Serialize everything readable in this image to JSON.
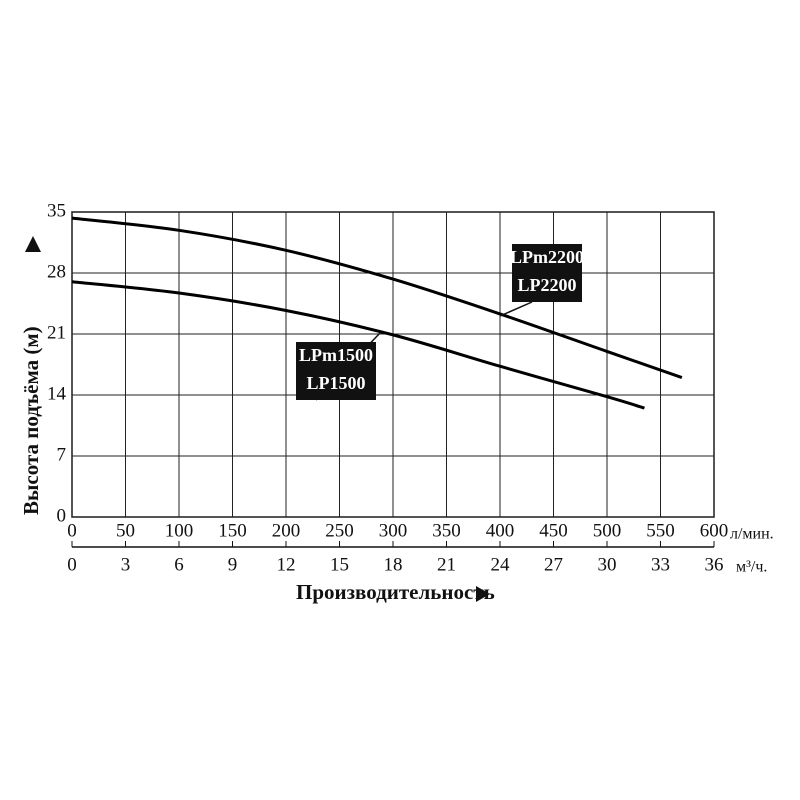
{
  "chart_data": {
    "type": "line",
    "xlabel": "Производительность",
    "ylabel": "Высота подъёма (м)",
    "xunit": "л/мин.",
    "x2unit": "м³/ч.",
    "xlim": [
      0,
      600
    ],
    "xticks": [
      0,
      50,
      100,
      150,
      200,
      250,
      300,
      350,
      400,
      450,
      500,
      550,
      600
    ],
    "x2lim": [
      0,
      36
    ],
    "x2ticks": [
      0,
      3,
      6,
      9,
      12,
      15,
      18,
      21,
      24,
      27,
      30,
      33,
      36
    ],
    "ylim": [
      0,
      35
    ],
    "yticks": [
      0,
      7,
      14,
      21,
      28,
      35
    ],
    "grid": true,
    "series": [
      {
        "name": "LPm2200",
        "alt_name": "LP2200",
        "color": "#000000",
        "x": [
          0,
          100,
          200,
          300,
          400,
          500,
          570
        ],
        "values": [
          34.3,
          32.9,
          30.6,
          27.3,
          23.3,
          19.0,
          16.0
        ]
      },
      {
        "name": "LPm1500",
        "alt_name": "LP1500",
        "color": "#000000",
        "x": [
          0,
          100,
          200,
          300,
          400,
          500,
          535
        ],
        "values": [
          27.0,
          25.7,
          23.7,
          20.9,
          17.3,
          13.8,
          12.5
        ]
      }
    ]
  }
}
